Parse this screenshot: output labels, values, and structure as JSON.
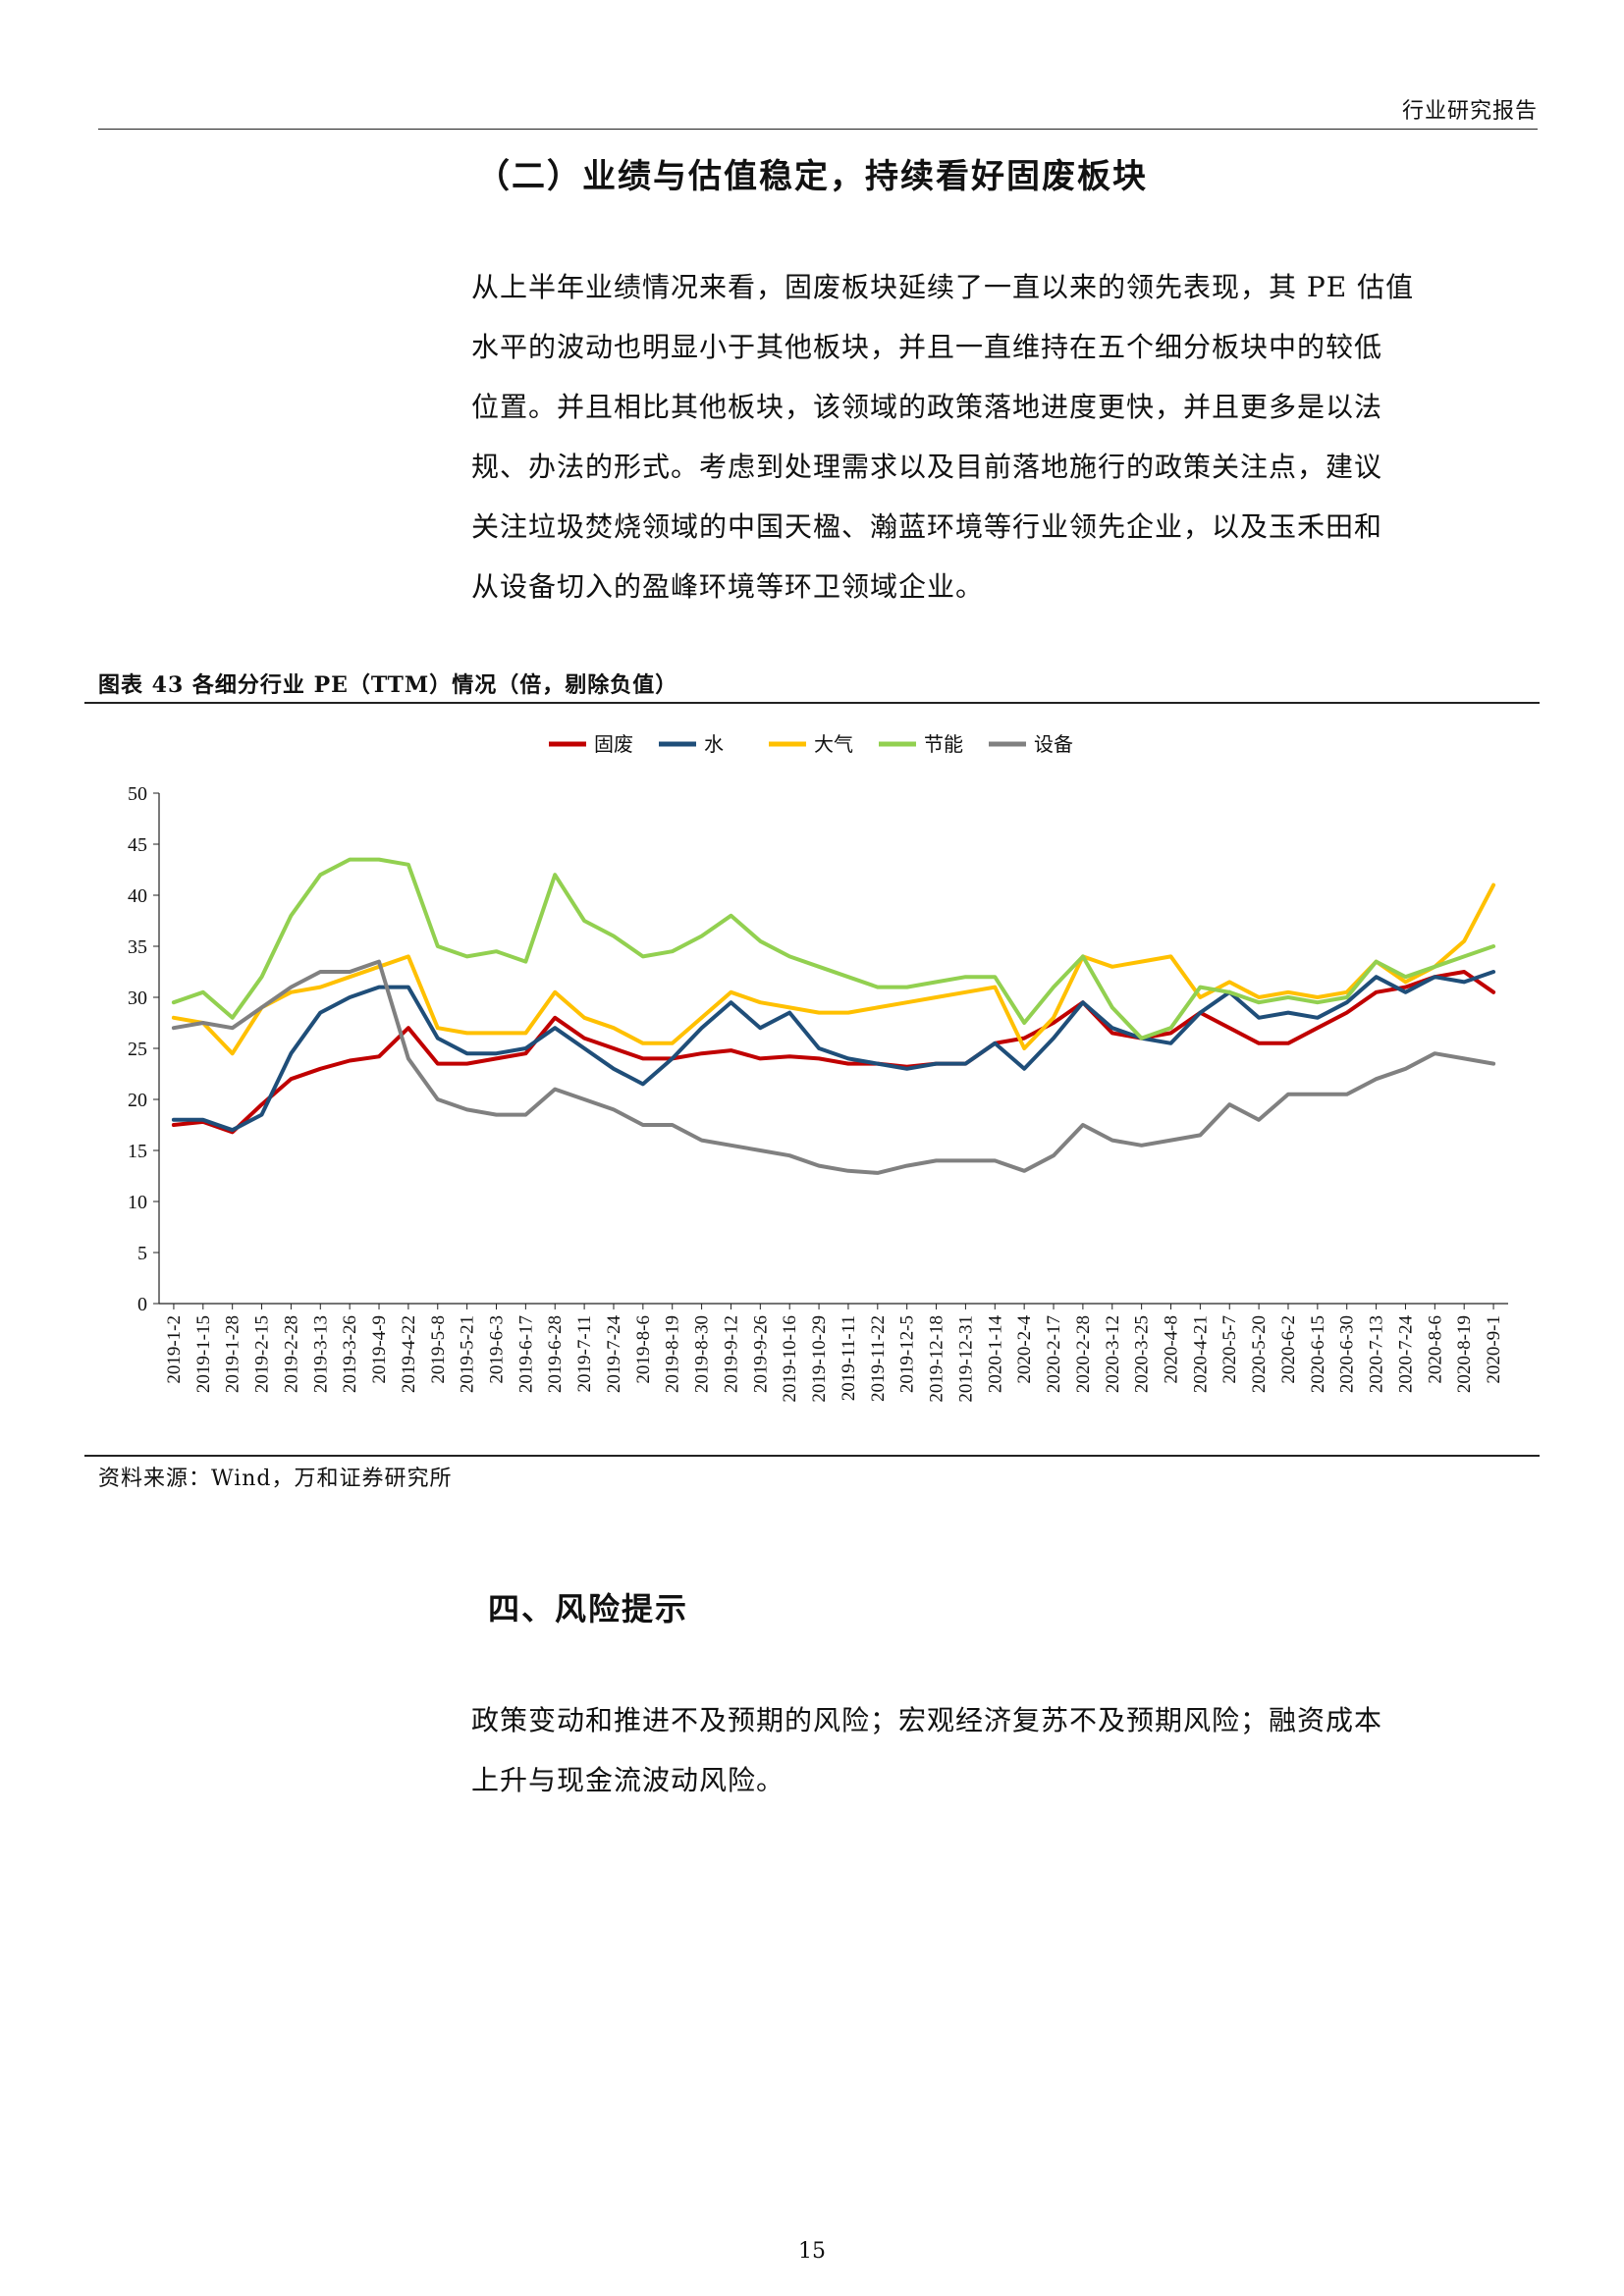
{
  "header": {
    "title": "行业研究报告"
  },
  "section": {
    "heading": "（二）业绩与估值稳定，持续看好固废板块",
    "paragraph_lines": [
      "从上半年业绩情况来看，固废板块延续了一直以来的领先表现，其 PE 估值",
      "水平的波动也明显小于其他板块，并且一直维持在五个细分板块中的较低",
      "位置。并且相比其他板块，该领域的政策落地进度更快，并且更多是以法",
      "规、办法的形式。考虑到处理需求以及目前落地施行的政策关注点，建议",
      "关注垃圾焚烧领域的中国天楹、瀚蓝环境等行业领先企业，以及玉禾田和",
      "从设备切入的盈峰环境等环卫领域企业。"
    ]
  },
  "figure": {
    "caption": "图表 43   各细分行业 PE（TTM）情况（倍，剔除负值）",
    "source": "资料来源：Wind，万和证券研究所"
  },
  "chart_data": {
    "type": "line",
    "title": "",
    "xlabel": "",
    "ylabel": "",
    "ylim": [
      0,
      50
    ],
    "y_ticks": [
      "0",
      "5",
      "10",
      "15",
      "20",
      "25",
      "30",
      "35",
      "40",
      "45",
      "50"
    ],
    "x_ticks": [
      "2019-1-2",
      "2019-1-15",
      "2019-1-28",
      "2019-2-15",
      "2019-2-28",
      "2019-3-13",
      "2019-3-26",
      "2019-4-9",
      "2019-4-22",
      "2019-5-8",
      "2019-5-21",
      "2019-6-3",
      "2019-6-17",
      "2019-6-28",
      "2019-7-11",
      "2019-7-24",
      "2019-8-6",
      "2019-8-19",
      "2019-8-30",
      "2019-9-12",
      "2019-9-26",
      "2019-10-16",
      "2019-10-29",
      "2019-11-11",
      "2019-11-22",
      "2019-12-5",
      "2019-12-18",
      "2019-12-31",
      "2020-1-14",
      "2020-2-4",
      "2020-2-17",
      "2020-2-28",
      "2020-3-12",
      "2020-3-25",
      "2020-4-8",
      "2020-4-21",
      "2020-5-7",
      "2020-5-20",
      "2020-6-2",
      "2020-6-15",
      "2020-6-30",
      "2020-7-13",
      "2020-7-24",
      "2020-8-6",
      "2020-8-19",
      "2020-9-1"
    ],
    "legend_position": "top-center",
    "grid": false,
    "series": [
      {
        "name": "固废",
        "color": "#c00000",
        "values": [
          17.5,
          17.8,
          16.8,
          19.5,
          22,
          23,
          23.8,
          24.2,
          27,
          23.5,
          23.5,
          24,
          24.5,
          28,
          26,
          25,
          24,
          24,
          24.5,
          24.8,
          24,
          24.2,
          24,
          23.5,
          23.5,
          23.2,
          23.5,
          23.5,
          25.5,
          26,
          27.5,
          29.5,
          26.5,
          26,
          26.5,
          28.5,
          27,
          25.5,
          25.5,
          27,
          28.5,
          30.5,
          31,
          32,
          32.5,
          30.5
        ]
      },
      {
        "name": "水",
        "color": "#1f4e79",
        "values": [
          18,
          18,
          17,
          18.5,
          24.5,
          28.5,
          30,
          31,
          31,
          26,
          24.5,
          24.5,
          25,
          27,
          25,
          23,
          21.5,
          24,
          27,
          29.5,
          27,
          28.5,
          25,
          24,
          23.5,
          23,
          23.5,
          23.5,
          25.5,
          23,
          26,
          29.5,
          27,
          26,
          25.5,
          28.5,
          30.5,
          28,
          28.5,
          28,
          29.5,
          32,
          30.5,
          32,
          31.5,
          32.5
        ]
      },
      {
        "name": "大气",
        "color": "#ffc000",
        "values": [
          28,
          27.5,
          24.5,
          29,
          30.5,
          31,
          32,
          33,
          34,
          27,
          26.5,
          26.5,
          26.5,
          30.5,
          28,
          27,
          25.5,
          25.5,
          28,
          30.5,
          29.5,
          29,
          28.5,
          28.5,
          29,
          29.5,
          30,
          30.5,
          31,
          25,
          28,
          34,
          33,
          33.5,
          34,
          30,
          31.5,
          30,
          30.5,
          30,
          30.5,
          33.5,
          31.5,
          33,
          35.5,
          41
        ]
      },
      {
        "name": "节能",
        "color": "#92d050",
        "values": [
          29.5,
          30.5,
          28,
          32,
          38,
          42,
          43.5,
          43.5,
          43,
          35,
          34,
          34.5,
          33.5,
          42,
          37.5,
          36,
          34,
          34.5,
          36,
          38,
          35.5,
          34,
          33,
          32,
          31,
          31,
          31.5,
          32,
          32,
          27.5,
          31,
          34,
          29,
          26,
          27,
          31,
          30.5,
          29.5,
          30,
          29.5,
          30,
          33.5,
          32,
          33,
          34,
          35
        ]
      },
      {
        "name": "设备",
        "color": "#808080",
        "values": [
          27,
          27.5,
          27,
          29,
          31,
          32.5,
          32.5,
          33.5,
          24,
          20,
          19,
          18.5,
          18.5,
          21,
          20,
          19,
          17.5,
          17.5,
          16,
          15.5,
          15,
          14.5,
          13.5,
          13,
          12.8,
          13.5,
          14,
          14,
          14,
          13,
          14.5,
          17.5,
          16,
          15.5,
          16,
          16.5,
          19.5,
          18,
          20.5,
          20.5,
          20.5,
          22,
          23,
          24.5,
          24,
          23.5
        ]
      }
    ]
  },
  "risk": {
    "heading": "四、风险提示",
    "paragraph_lines": [
      "政策变动和推进不及预期的风险；宏观经济复苏不及预期风险；融资成本",
      "上升与现金流波动风险。"
    ]
  },
  "footer": {
    "page_number": "15"
  }
}
